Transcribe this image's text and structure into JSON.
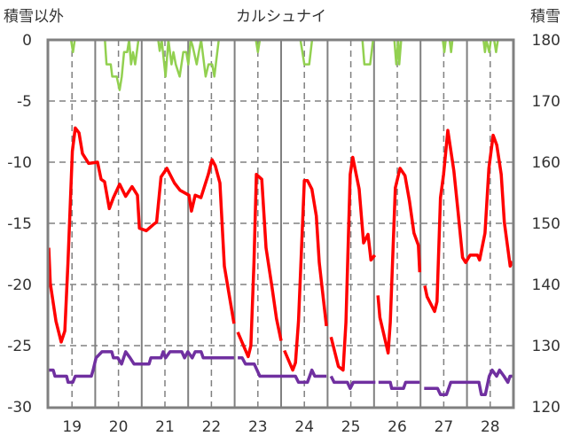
{
  "chart_data": {
    "type": "line",
    "title": "カルシュナイ",
    "ylabel_left": "積雪以外",
    "ylabel_right": "積雪",
    "xlabel": "",
    "x_unit": "hours from start of day 19",
    "xlim": [
      0,
      240
    ],
    "ylim_left": [
      -30,
      0
    ],
    "ylim_right": [
      120,
      180
    ],
    "yticks_left": [
      "0",
      "-5",
      "-10",
      "-15",
      "-20",
      "-25",
      "-30"
    ],
    "yticks_right": [
      "180",
      "170",
      "160",
      "150",
      "140",
      "130",
      "120"
    ],
    "xticks": [
      "19",
      "20",
      "21",
      "22",
      "23",
      "24",
      "25",
      "26",
      "27",
      "28"
    ],
    "grid": true,
    "colors": {
      "temperature": "#ff0000",
      "other": "#92d050",
      "snow": "#7030a0",
      "grid": "#808080"
    },
    "series": [
      {
        "name": "green",
        "axis": "left",
        "color": "#92d050",
        "points": [
          [
            0,
            0
          ],
          [
            11.5,
            0
          ],
          [
            12.5,
            -1
          ],
          [
            13.4,
            0
          ],
          [
            29,
            0
          ],
          [
            29.8,
            -2
          ],
          [
            32,
            -2
          ],
          [
            32.8,
            -3
          ],
          [
            35.1,
            -3
          ],
          [
            36.6,
            -4.1
          ],
          [
            37.7,
            -3
          ],
          [
            38.9,
            -1
          ],
          [
            40.5,
            -1
          ],
          [
            41.5,
            0
          ],
          [
            42.5,
            -2
          ],
          [
            43.5,
            -1
          ],
          [
            44.6,
            -2
          ],
          [
            45.5,
            -1
          ],
          [
            46.3,
            0
          ],
          [
            56.5,
            0
          ],
          [
            57.3,
            -0.9
          ],
          [
            58.3,
            0
          ],
          [
            60.3,
            -3
          ],
          [
            61.8,
            0
          ],
          [
            63.4,
            -2
          ],
          [
            64.4,
            -1
          ],
          [
            65.6,
            -2
          ],
          [
            67.6,
            -3
          ],
          [
            69.5,
            -1
          ],
          [
            71,
            -1
          ],
          [
            72.1,
            -2
          ],
          [
            73.3,
            0
          ],
          [
            74.3,
            -0.5
          ],
          [
            76.4,
            -2
          ],
          [
            77.5,
            -1
          ],
          [
            78.7,
            0
          ],
          [
            81,
            -3
          ],
          [
            82.5,
            -2
          ],
          [
            84.4,
            -2
          ],
          [
            85.5,
            -3
          ],
          [
            87.8,
            0
          ],
          null,
          [
            91,
            0
          ],
          [
            96,
            0
          ],
          [
            107,
            0
          ],
          [
            108,
            -1
          ],
          [
            109,
            0
          ],
          [
            120,
            0
          ],
          [
            130,
            0
          ],
          [
            132,
            -2
          ],
          [
            134.5,
            -2
          ],
          [
            136,
            0
          ],
          [
            143,
            0
          ],
          null,
          [
            145,
            0
          ],
          [
            162,
            0
          ],
          [
            163,
            -2
          ],
          [
            166,
            -2
          ],
          [
            167.5,
            0
          ],
          [
            168,
            0
          ],
          null,
          [
            170,
            0
          ],
          [
            178.5,
            0
          ],
          [
            179.5,
            -2
          ],
          [
            180.5,
            0
          ],
          [
            181,
            -2
          ],
          [
            182,
            0
          ],
          [
            192,
            0
          ],
          null,
          [
            195,
            0
          ],
          [
            203.5,
            0
          ],
          [
            204.3,
            -1
          ],
          [
            205,
            0
          ],
          [
            207,
            0
          ],
          [
            207.8,
            -1
          ],
          [
            208.5,
            0
          ],
          [
            216,
            0
          ],
          [
            224.5,
            0
          ],
          [
            225.3,
            -1
          ],
          [
            226,
            0
          ],
          [
            227.5,
            -1
          ],
          [
            228.3,
            0
          ],
          [
            230,
            0
          ],
          [
            231,
            -1
          ],
          [
            232,
            0
          ],
          [
            240,
            0
          ]
        ]
      },
      {
        "name": "red",
        "axis": "left",
        "color": "#ff0000",
        "points": [
          [
            0,
            -17
          ],
          [
            0.8,
            -19.9
          ],
          [
            3.7,
            -23
          ],
          [
            6.4,
            -24.7
          ],
          [
            8.3,
            -23.8
          ],
          [
            9.9,
            -18.3
          ],
          [
            12.2,
            -9.1
          ],
          [
            13.7,
            -7.2
          ],
          [
            15.6,
            -7.6
          ],
          [
            17.4,
            -9.3
          ],
          [
            20.6,
            -10.1
          ],
          [
            25.2,
            -10
          ],
          [
            27,
            -11.4
          ],
          [
            28.8,
            -11.6
          ],
          [
            31.3,
            -13.8
          ],
          [
            33.4,
            -12.9
          ],
          [
            36.6,
            -11.8
          ],
          [
            39.7,
            -12.8
          ],
          [
            43,
            -12
          ],
          [
            45.8,
            -12.7
          ],
          [
            46.8,
            -15.4
          ],
          [
            50.4,
            -15.6
          ],
          [
            54,
            -15.1
          ],
          [
            55.7,
            -14.9
          ],
          [
            58,
            -11.2
          ],
          [
            61,
            -10.5
          ],
          [
            64.9,
            -11.7
          ],
          [
            67.8,
            -12.3
          ],
          [
            72.4,
            -12.7
          ],
          [
            73.7,
            -14
          ],
          [
            75.6,
            -12.7
          ],
          [
            78.6,
            -12.9
          ],
          [
            82.4,
            -11
          ],
          [
            84.3,
            -9.8
          ],
          [
            86,
            -10.3
          ],
          [
            88.4,
            -11.7
          ],
          [
            90.7,
            -18.5
          ],
          [
            95.7,
            -23.2
          ],
          null,
          [
            97.6,
            -23.9
          ],
          [
            103,
            -25.9
          ],
          [
            104.4,
            -25
          ],
          [
            106,
            -18.2
          ],
          [
            107.2,
            -11
          ],
          [
            110,
            -11.4
          ],
          [
            112.2,
            -17
          ],
          [
            115.3,
            -20.2
          ],
          [
            117.6,
            -22.8
          ],
          [
            120,
            -24.6
          ],
          null,
          [
            121.7,
            -25.4
          ],
          [
            126,
            -27
          ],
          [
            127.4,
            -26.4
          ],
          [
            129,
            -23
          ],
          [
            132,
            -11.5
          ],
          [
            133.6,
            -11.5
          ],
          [
            135.9,
            -12.2
          ],
          [
            138.2,
            -14.4
          ],
          [
            139.7,
            -18.2
          ],
          [
            143.4,
            -23.4
          ],
          null,
          [
            145.8,
            -24.3
          ],
          [
            149.6,
            -26.7
          ],
          [
            152,
            -27
          ],
          [
            153.5,
            -23.1
          ],
          [
            155.7,
            -11
          ],
          [
            157,
            -9.6
          ],
          [
            160.3,
            -12.2
          ],
          [
            162.6,
            -16.6
          ],
          [
            164.9,
            -15.9
          ],
          [
            166.4,
            -18
          ],
          [
            168.4,
            -17.6
          ],
          null,
          [
            170,
            -20.9
          ],
          [
            171,
            -22.7
          ],
          [
            175.3,
            -25.6
          ],
          [
            176.4,
            -23.1
          ],
          [
            179,
            -12.1
          ],
          [
            181.4,
            -10.5
          ],
          [
            184,
            -11.1
          ],
          [
            186.3,
            -13.2
          ],
          [
            188.6,
            -15.8
          ],
          [
            190.9,
            -16.8
          ],
          [
            191.6,
            -19
          ],
          null,
          [
            194.2,
            -20.1
          ],
          [
            195.4,
            -21
          ],
          [
            199.3,
            -22.2
          ],
          [
            200.5,
            -21.4
          ],
          [
            202.3,
            -12.9
          ],
          [
            203.9,
            -11
          ],
          [
            206.1,
            -7.4
          ],
          [
            209.2,
            -10.7
          ],
          [
            211.4,
            -14.1
          ],
          [
            213.7,
            -17.8
          ],
          [
            215.3,
            -18.2
          ],
          [
            217.6,
            -17.6
          ],
          [
            221.4,
            -17.6
          ],
          [
            222.5,
            -18
          ],
          [
            225.3,
            -15.8
          ],
          [
            227.3,
            -10.5
          ],
          [
            229.5,
            -7.8
          ],
          [
            231.4,
            -8.6
          ],
          [
            233.7,
            -11
          ],
          [
            235.3,
            -14.9
          ],
          [
            238.3,
            -18.5
          ],
          [
            239.4,
            -18.1
          ]
        ]
      },
      {
        "name": "purple",
        "axis": "right",
        "color": "#7030a0",
        "points": [
          [
            0,
            126
          ],
          [
            2.3,
            126
          ],
          [
            3.2,
            125
          ],
          [
            9.2,
            125
          ],
          [
            10,
            124
          ],
          [
            12.4,
            124
          ],
          [
            13.7,
            125
          ],
          [
            22,
            125
          ],
          [
            22.9,
            126
          ],
          [
            24.4,
            128
          ],
          [
            27.5,
            129
          ],
          [
            32.5,
            129
          ],
          [
            33.4,
            128
          ],
          [
            35.7,
            128
          ],
          [
            37.6,
            127
          ],
          [
            39.7,
            129
          ],
          [
            42,
            128
          ],
          [
            44,
            127
          ],
          [
            45.8,
            127
          ],
          [
            51.8,
            127
          ],
          [
            52.7,
            128
          ],
          [
            58,
            128
          ],
          [
            59.1,
            129
          ],
          [
            60.3,
            128
          ],
          [
            62.6,
            129
          ],
          [
            68.7,
            129
          ],
          [
            70.1,
            128
          ],
          [
            71.8,
            129
          ],
          [
            74.1,
            128
          ],
          [
            75.6,
            129
          ],
          [
            78.7,
            129
          ],
          [
            79.8,
            128
          ],
          [
            95.7,
            128
          ],
          null,
          [
            97.6,
            128
          ],
          [
            99.9,
            128
          ],
          [
            101.6,
            127
          ],
          [
            106.1,
            127
          ],
          [
            109,
            125
          ],
          [
            121.4,
            125
          ],
          [
            127.4,
            125
          ],
          [
            129,
            124
          ],
          [
            133.6,
            124
          ],
          [
            135.9,
            126
          ],
          [
            137.4,
            125
          ],
          [
            143.4,
            125
          ],
          null,
          [
            145.8,
            125
          ],
          [
            147.4,
            124
          ],
          [
            154.2,
            124
          ],
          [
            155.7,
            123
          ],
          [
            157.3,
            124
          ],
          [
            168.7,
            124
          ],
          null,
          [
            170.3,
            124
          ],
          [
            176.4,
            124
          ],
          [
            177.1,
            123
          ],
          [
            183.2,
            123
          ],
          [
            184.3,
            124
          ],
          [
            191.6,
            124
          ],
          null,
          [
            193.9,
            123
          ],
          [
            200.8,
            123
          ],
          [
            202.3,
            122
          ],
          [
            205.4,
            122
          ],
          [
            207.6,
            124
          ],
          [
            222.2,
            124
          ],
          [
            223.4,
            122
          ],
          [
            225.5,
            122
          ],
          [
            227.5,
            125
          ],
          [
            229,
            126
          ],
          [
            231.3,
            125
          ],
          [
            232.8,
            126
          ],
          [
            235.1,
            125
          ],
          [
            237.1,
            124
          ],
          [
            238.2,
            125
          ],
          [
            239.7,
            125
          ]
        ]
      }
    ]
  }
}
